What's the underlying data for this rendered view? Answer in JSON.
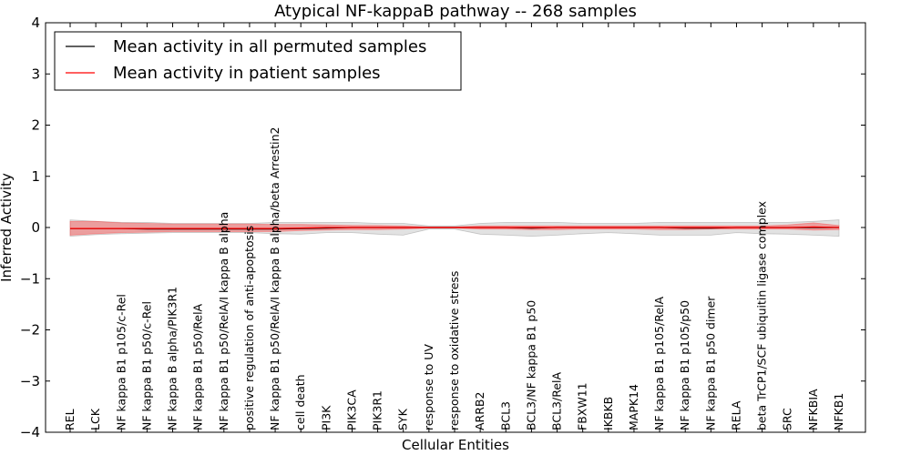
{
  "chart_data": {
    "type": "line",
    "title": "Atypical NF-kappaB pathway -- 268 samples",
    "xlabel": "Cellular Entities",
    "ylabel": "Inferred Activity",
    "ylim": [
      -4,
      4
    ],
    "yticks": [
      -4,
      -3,
      -2,
      -1,
      0,
      1,
      2,
      3,
      4
    ],
    "ytick_labels": [
      "−4",
      "−3",
      "−2",
      "−1",
      "0",
      "1",
      "2",
      "3",
      "4"
    ],
    "grid": false,
    "legend": {
      "placement": "top-left",
      "entries": [
        {
          "label": "Mean activity in all permuted samples",
          "color": "#000000"
        },
        {
          "label": "Mean activity in patient samples",
          "color": "#ff0000"
        }
      ]
    },
    "categories": [
      "REL",
      "LCK",
      "NF kappa B1 p105/c-Rel",
      "NF kappa B1 p50/c-Rel",
      "NF kappa B alpha/PIK3R1",
      "NF kappa B1 p50/RelA",
      "NF kappa B1 p50/RelA/I kappa B alpha",
      "positive regulation of anti-apoptosis",
      "NF kappa B1 p50/RelA/I kappa B alpha/beta Arrestin2",
      "cell death",
      "PI3K",
      "PIK3CA",
      "PIK3R1",
      "SYK",
      "response to UV",
      "response to oxidative stress",
      "ARRB2",
      "BCL3",
      "BCL3/NF kappa B1 p50",
      "BCL3/RelA",
      "FBXW11",
      "IKBKB",
      "MAPK14",
      "NF kappa B1 p105/RelA",
      "NF kappa B1 p105/p50",
      "NF kappa B1 p50 dimer",
      "RELA",
      "beta TrCP1/SCF ubiquitin ligase complex",
      "SRC",
      "NFKBIA",
      "NFKB1"
    ],
    "series": [
      {
        "name": "Mean activity in all permuted samples",
        "color": "#000000",
        "values": [
          -0.02,
          -0.02,
          -0.02,
          -0.03,
          -0.03,
          -0.03,
          -0.03,
          -0.03,
          -0.03,
          -0.02,
          -0.01,
          0,
          0,
          0,
          0,
          0,
          0,
          0,
          -0.01,
          0,
          0,
          0,
          0,
          0,
          -0.01,
          -0.01,
          0,
          0,
          0,
          0,
          0
        ],
        "band_lower": [
          -0.17,
          -0.14,
          -0.12,
          -0.11,
          -0.1,
          -0.1,
          -0.1,
          -0.1,
          -0.12,
          -0.13,
          -0.1,
          -0.1,
          -0.13,
          -0.15,
          -0.03,
          -0.03,
          -0.13,
          -0.15,
          -0.17,
          -0.15,
          -0.12,
          -0.1,
          -0.12,
          -0.15,
          -0.15,
          -0.15,
          -0.1,
          -0.12,
          -0.13,
          -0.15,
          -0.17
        ],
        "band_upper": [
          0.15,
          0.12,
          0.1,
          0.1,
          0.08,
          0.08,
          0.08,
          0.08,
          0.1,
          0.1,
          0.1,
          0.1,
          0.08,
          0.08,
          0.03,
          0.03,
          0.08,
          0.1,
          0.1,
          0.1,
          0.08,
          0.08,
          0.08,
          0.1,
          0.1,
          0.1,
          0.1,
          0.1,
          0.1,
          0.12,
          0.15
        ]
      },
      {
        "name": "Mean activity in patient samples",
        "color": "#ff0000",
        "values": [
          -0.02,
          -0.02,
          -0.02,
          -0.02,
          -0.02,
          -0.02,
          -0.02,
          -0.02,
          -0.02,
          -0.01,
          0,
          0,
          0,
          0,
          0,
          0,
          0,
          0,
          0,
          0,
          0,
          0,
          0,
          0,
          0,
          0,
          0,
          0,
          0,
          0.01,
          0
        ],
        "band_lower": [
          -0.15,
          -0.12,
          -0.1,
          -0.09,
          -0.08,
          -0.08,
          -0.08,
          -0.08,
          -0.08,
          -0.06,
          -0.05,
          -0.04,
          -0.04,
          -0.03,
          -0.01,
          -0.01,
          -0.03,
          -0.03,
          -0.04,
          -0.04,
          -0.03,
          -0.03,
          -0.03,
          -0.04,
          -0.04,
          -0.03,
          -0.03,
          -0.03,
          -0.03,
          -0.05,
          -0.04
        ],
        "band_upper": [
          0.12,
          0.12,
          0.09,
          0.08,
          0.07,
          0.07,
          0.07,
          0.07,
          0.06,
          0.06,
          0.05,
          0.04,
          0.04,
          0.03,
          0.01,
          0.01,
          0.03,
          0.03,
          0.03,
          0.03,
          0.03,
          0.03,
          0.03,
          0.03,
          0.03,
          0.03,
          0.03,
          0.03,
          0.05,
          0.09,
          0.04
        ]
      }
    ]
  }
}
